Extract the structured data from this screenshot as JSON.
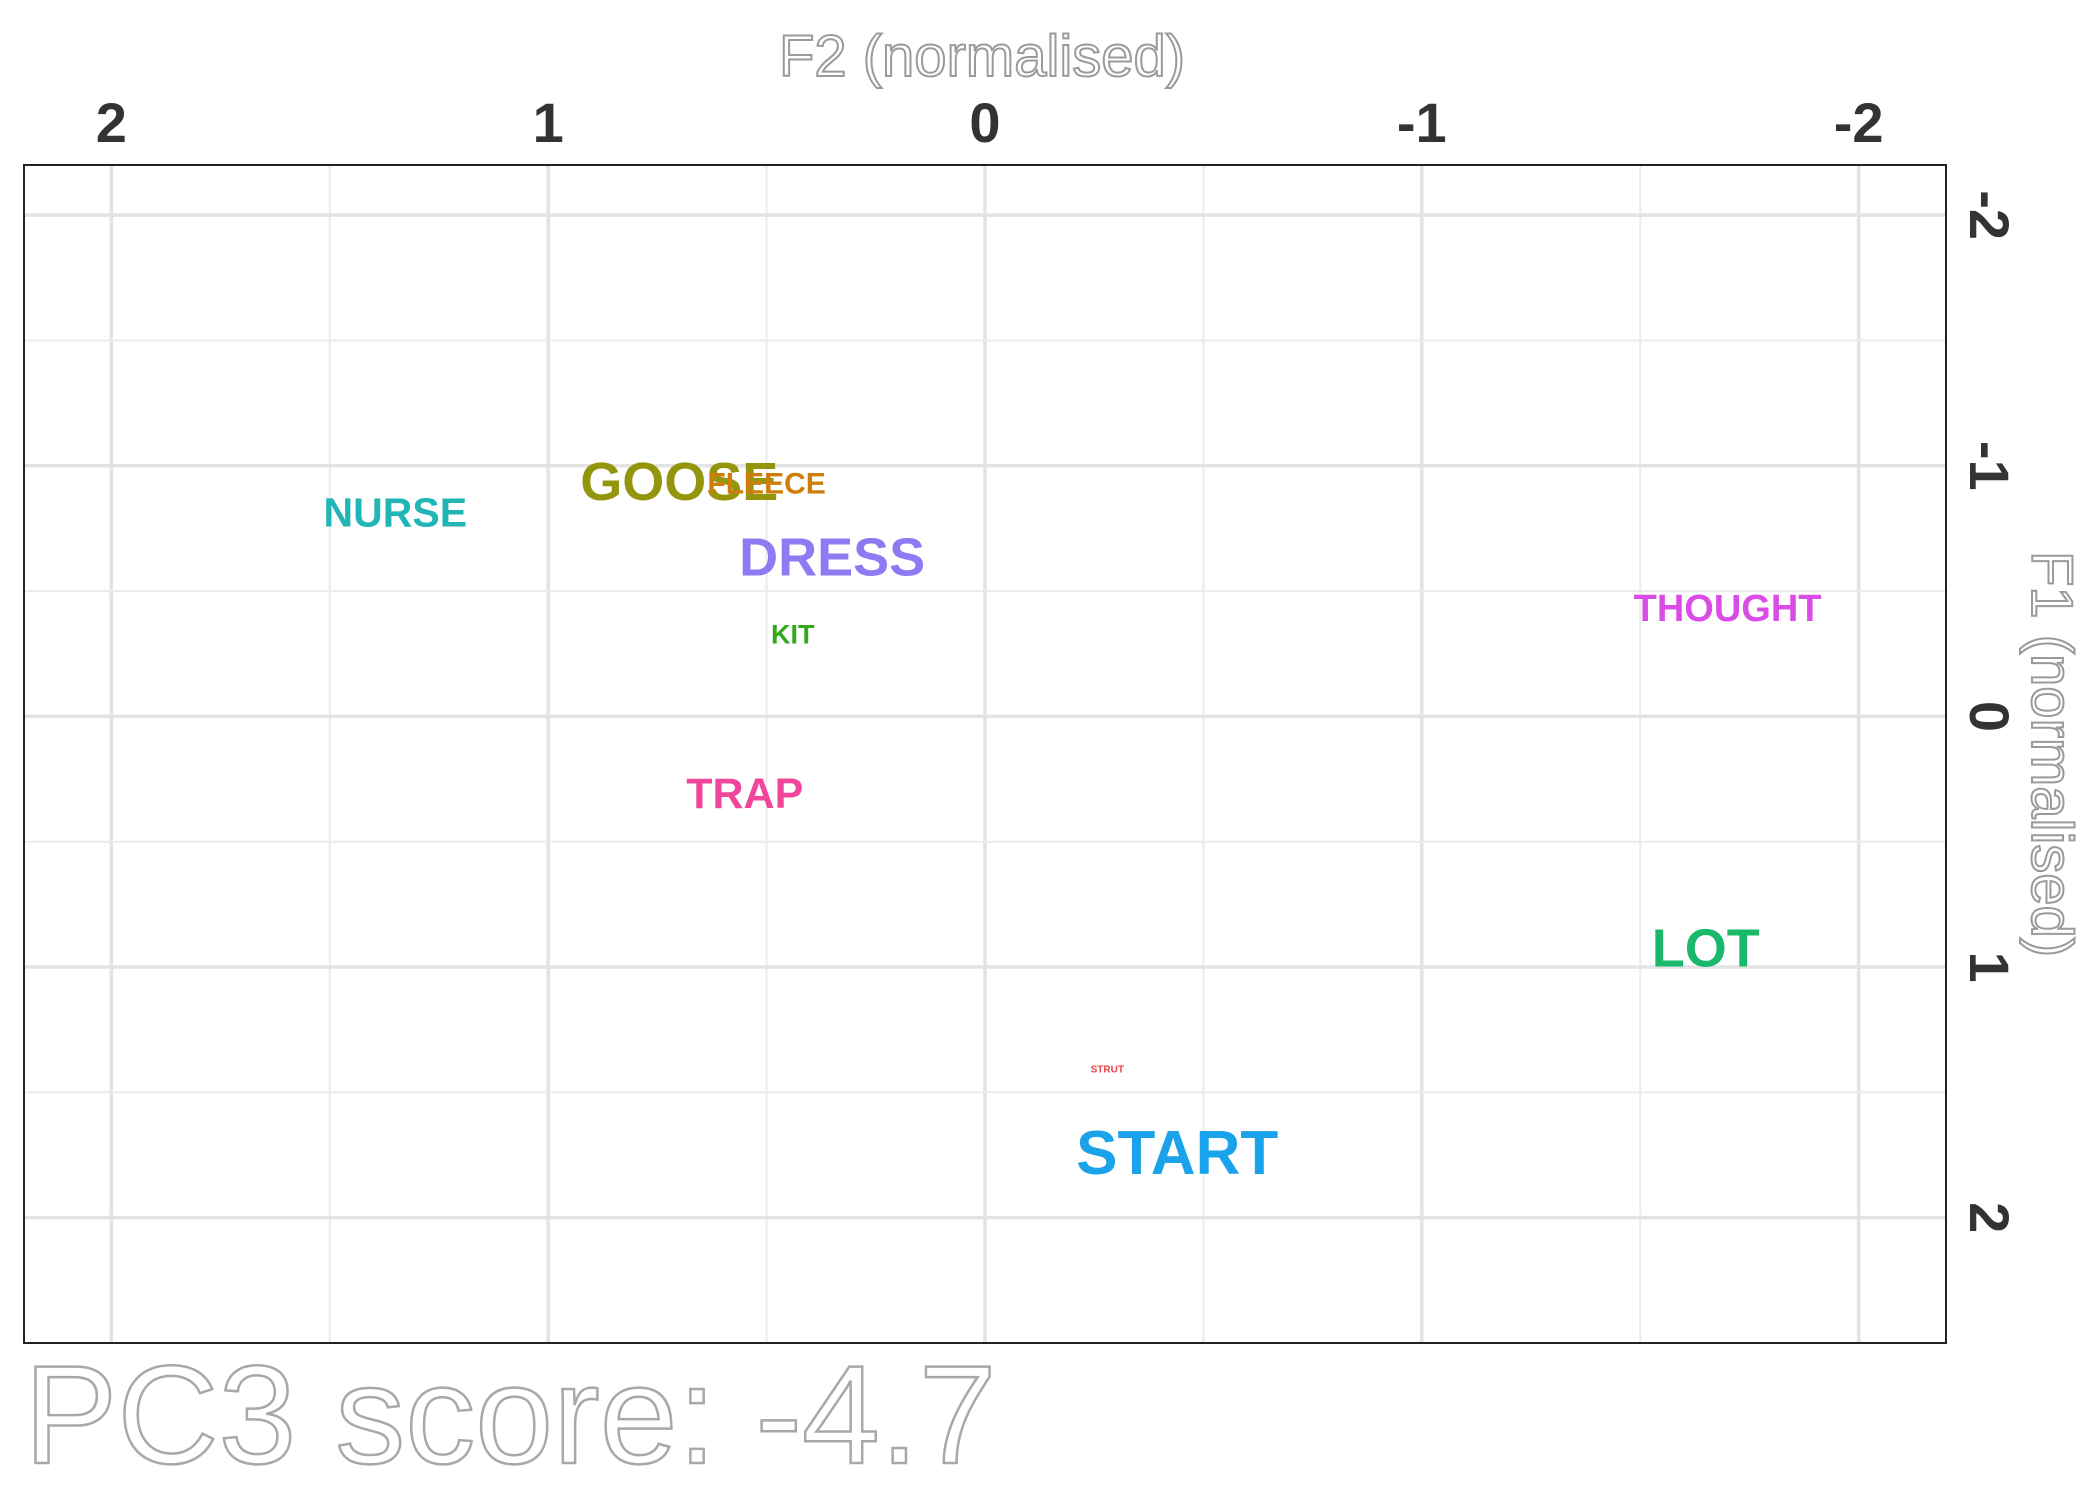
{
  "chart_data": {
    "type": "scatter",
    "xlabel": "F2 (normalised)",
    "ylabel": "F1 (normalised)",
    "x_axis_position": "top",
    "y_axis_position": "right",
    "x_reversed": true,
    "y_reversed": true,
    "xlim": [
      2.2,
      -2.2
    ],
    "ylim": [
      -2.2,
      2.5
    ],
    "x_ticks": [
      2,
      1,
      0,
      -1,
      -2
    ],
    "x_tick_labels": [
      "2",
      "1",
      "0",
      "-1",
      "-2"
    ],
    "y_ticks": [
      -2,
      -1,
      0,
      1,
      2
    ],
    "y_tick_labels": [
      "-2",
      "-1",
      "0",
      "1",
      "2"
    ],
    "grid": true,
    "caption": "PC3 score: -4.7",
    "points": [
      {
        "label": "NURSE",
        "x": 1.35,
        "y": -0.8,
        "color": "#22b5b5",
        "weight": 0.75
      },
      {
        "label": "GOOSE",
        "x": 0.7,
        "y": -0.92,
        "color": "#93960c",
        "weight": 1.0
      },
      {
        "label": "FLEECE",
        "x": 0.5,
        "y": -0.92,
        "color": "#cf7d0a",
        "weight": 0.55
      },
      {
        "label": "DRESS",
        "x": 0.35,
        "y": -0.62,
        "color": "#8c7bf2",
        "weight": 1.0
      },
      {
        "label": "KIT",
        "x": 0.44,
        "y": -0.32,
        "color": "#33a81a",
        "weight": 0.5
      },
      {
        "label": "THOUGHT",
        "x": -1.7,
        "y": -0.42,
        "color": "#d94ce8",
        "weight": 0.7
      },
      {
        "label": "TRAP",
        "x": 0.55,
        "y": 0.32,
        "color": "#f0479c",
        "weight": 0.8
      },
      {
        "label": "LOT",
        "x": -1.65,
        "y": 0.94,
        "color": "#1ab86b",
        "weight": 1.0
      },
      {
        "label": "STRUT",
        "x": -0.28,
        "y": 1.41,
        "color": "#ee4444",
        "weight": 0.18
      },
      {
        "label": "START",
        "x": -0.44,
        "y": 1.76,
        "color": "#1aa3ea",
        "weight": 1.15
      }
    ]
  }
}
